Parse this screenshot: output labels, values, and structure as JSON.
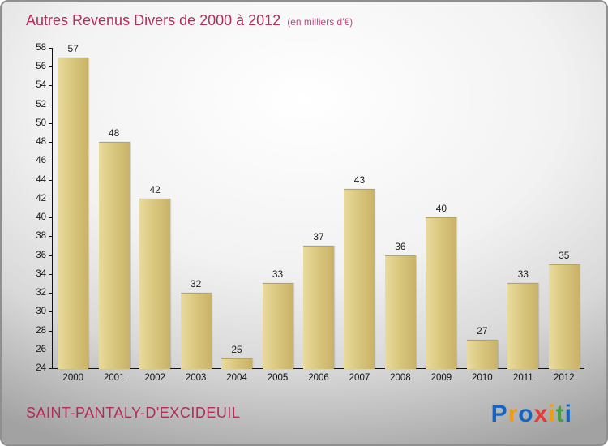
{
  "header": {
    "title": "Autres Revenus Divers de 2000 à 2012",
    "subtitle": "(en milliers d'€)"
  },
  "footer": {
    "commune": "SAINT-PANTALY-D'EXCIDEUIL"
  },
  "logo": {
    "text": "Proxiti",
    "letters": [
      {
        "ch": "P",
        "color": "#1565c0"
      },
      {
        "ch": "r",
        "color": "#f59c00"
      },
      {
        "ch": "o",
        "color": "#1565c0"
      },
      {
        "ch": "x",
        "color": "#e53935"
      },
      {
        "ch": "i",
        "color": "#f59c00"
      },
      {
        "ch": "t",
        "color": "#43a047"
      },
      {
        "ch": "i",
        "color": "#1565c0"
      }
    ]
  },
  "colors": {
    "title_accent": "#b02d5c",
    "bar": "#dac87f"
  },
  "chart_data": {
    "type": "bar",
    "title": "Autres Revenus Divers de 2000 à 2012",
    "subtitle": "(en milliers d'€)",
    "categories": [
      "2000",
      "2001",
      "2002",
      "2003",
      "2004",
      "2005",
      "2006",
      "2007",
      "2008",
      "2009",
      "2010",
      "2011",
      "2012"
    ],
    "values": [
      57,
      48,
      42,
      32,
      25,
      33,
      37,
      43,
      36,
      40,
      27,
      33,
      35
    ],
    "xlabel": "",
    "ylabel": "",
    "ylim": [
      24,
      58
    ],
    "ytick_step": 2,
    "grid": false,
    "legend": false
  }
}
